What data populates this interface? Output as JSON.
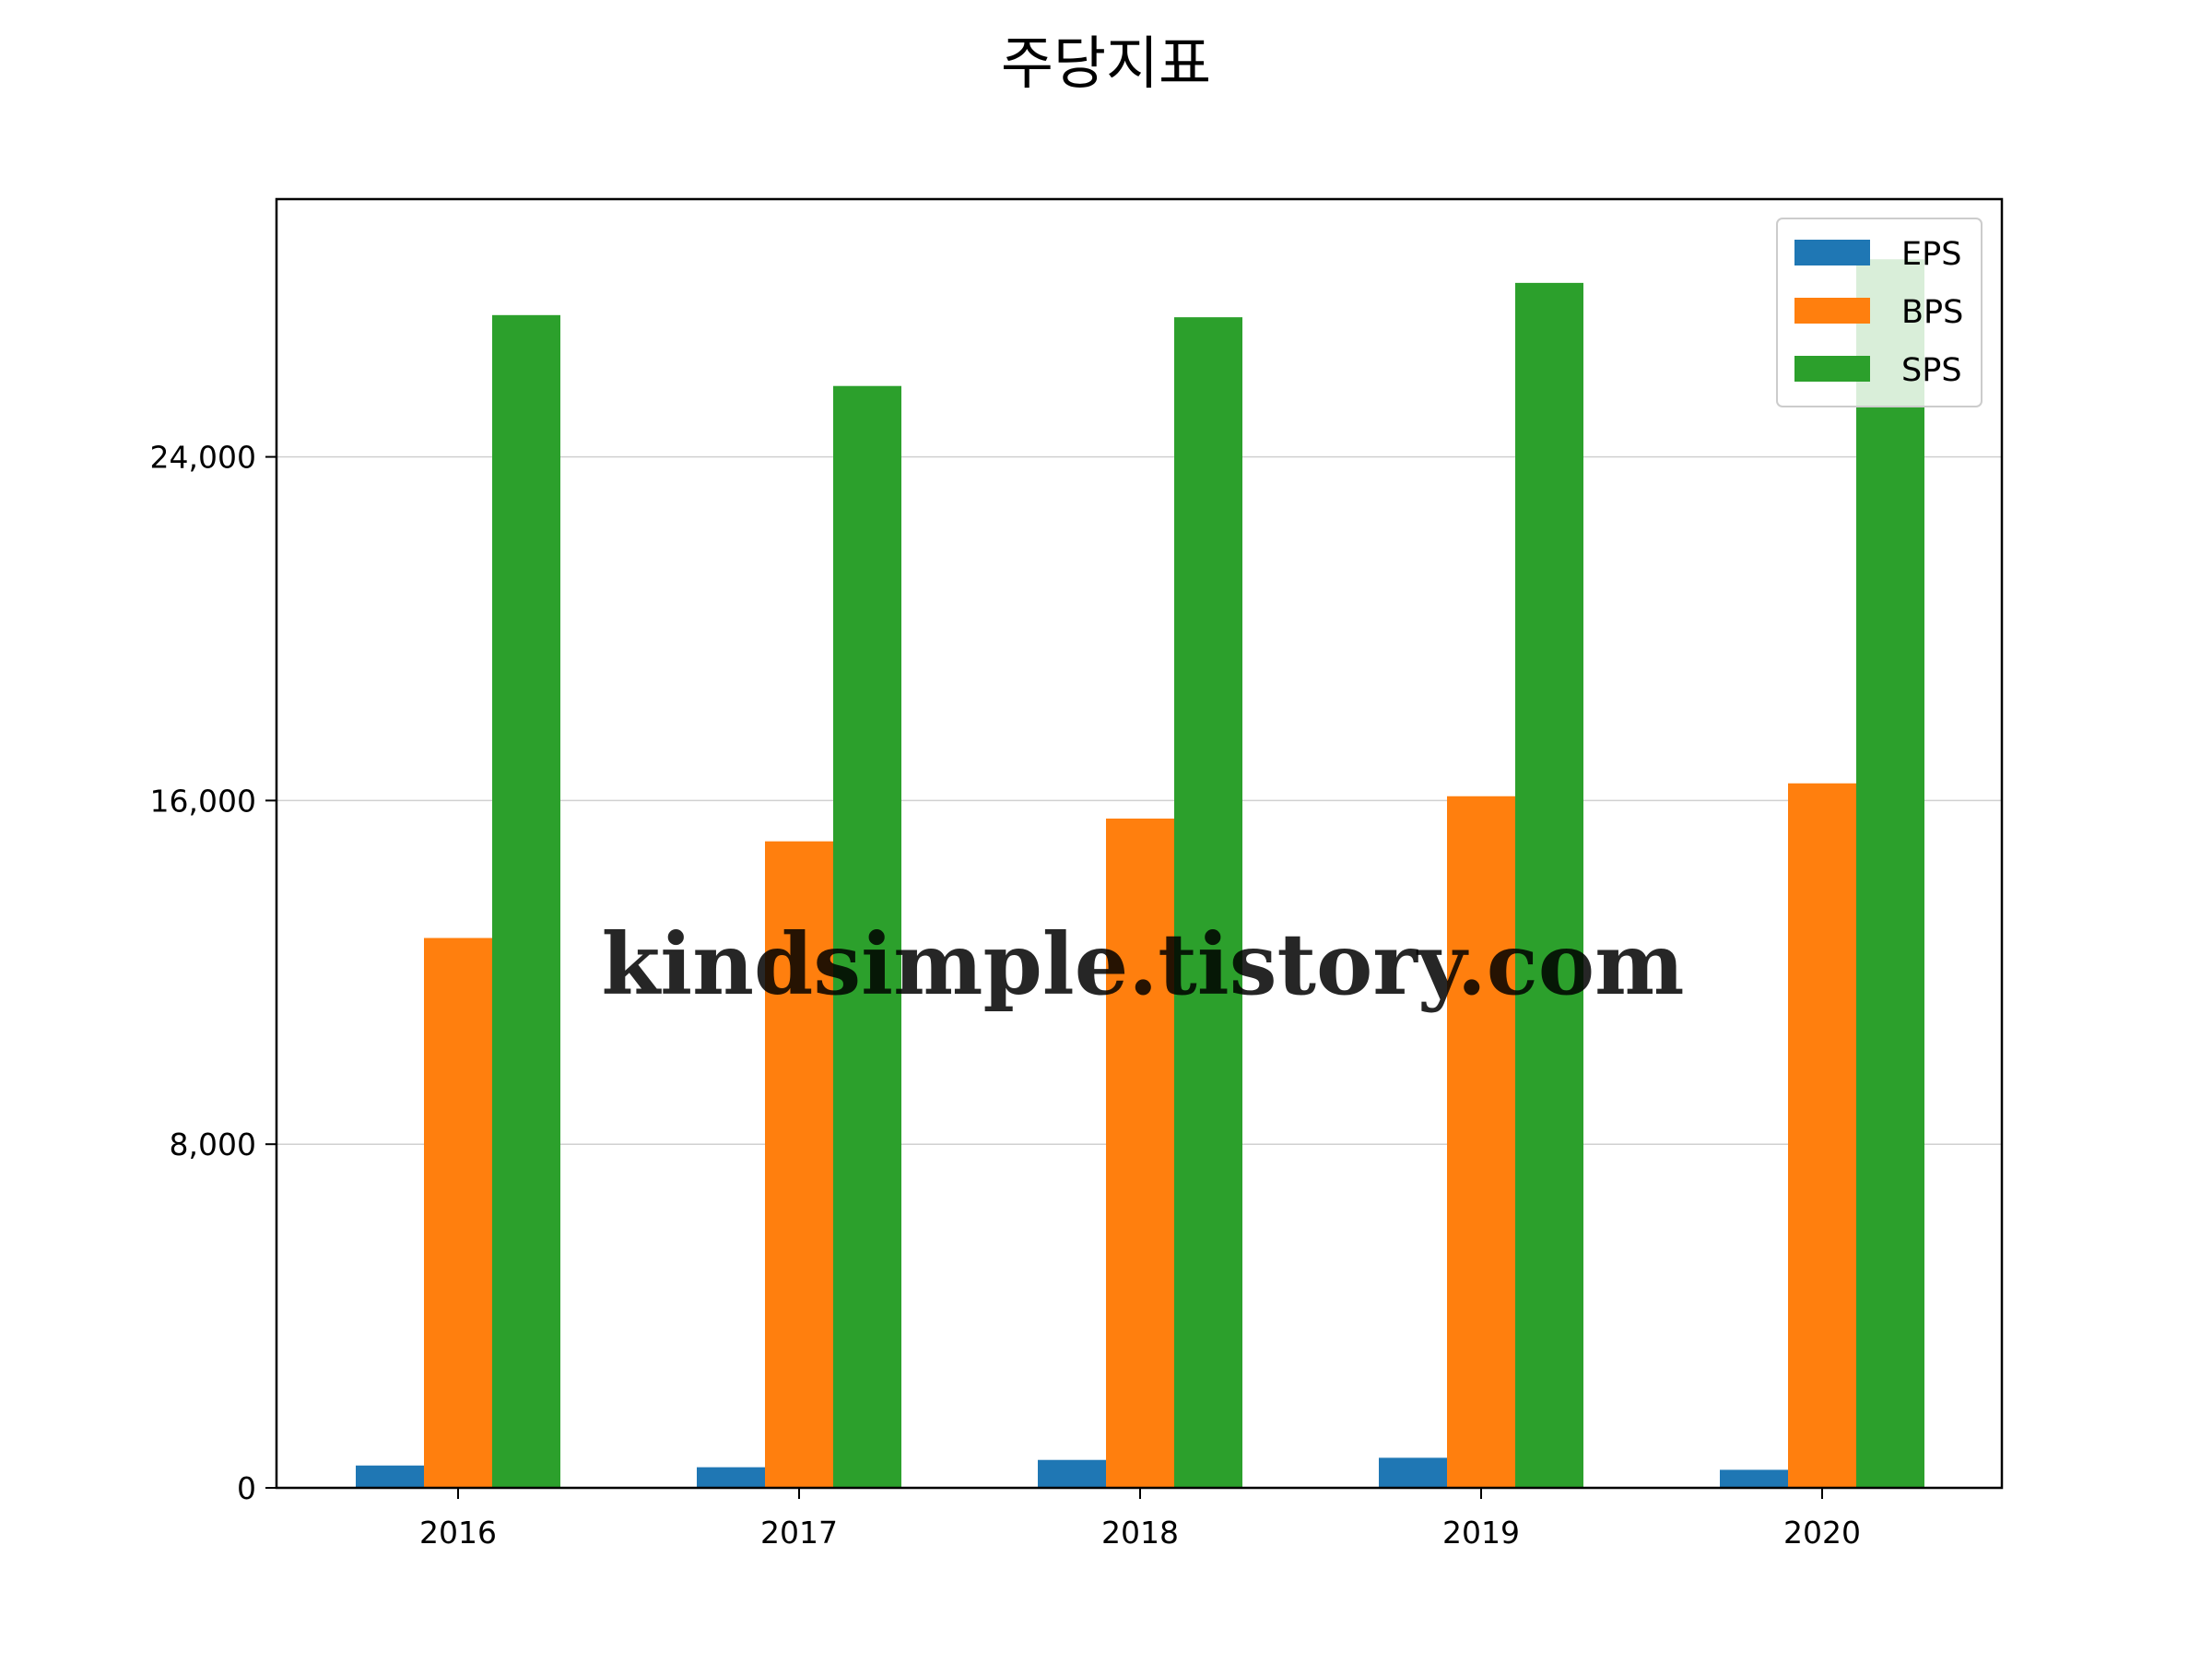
{
  "chart_data": {
    "type": "bar",
    "title": "주당지표",
    "xlabel": "",
    "ylabel": "",
    "categories": [
      "2016",
      "2017",
      "2018",
      "2019",
      "2020"
    ],
    "series": [
      {
        "name": "EPS",
        "color": "#1f77b4",
        "values": [
          520,
          480,
          650,
          700,
          420
        ]
      },
      {
        "name": "BPS",
        "color": "#ff7f0e",
        "values": [
          12800,
          15050,
          15580,
          16100,
          16400
        ]
      },
      {
        "name": "SPS",
        "color": "#2ca02c",
        "values": [
          27300,
          25650,
          27250,
          28050,
          28600
        ]
      }
    ],
    "ylim": [
      0,
      30000
    ],
    "yticks": [
      0,
      8000,
      16000,
      24000
    ],
    "ytick_labels": [
      "0",
      "8,000",
      "16,000",
      "24,000"
    ],
    "grid": "y",
    "legend_position": "top-right"
  },
  "watermark": {
    "text": "kindsimple.tistory.com",
    "color": "#e6a0ec"
  }
}
